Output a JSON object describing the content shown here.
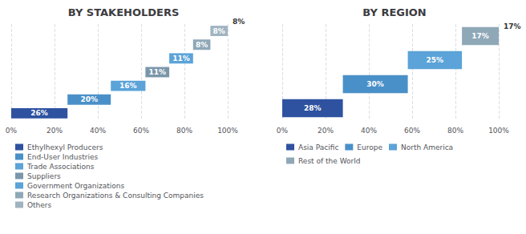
{
  "chart_data": [
    {
      "type": "bar",
      "orientation": "horizontal",
      "stacked": true,
      "title": "BY STAKEHOLDERS",
      "categories": [
        "Ethylhexyl Producers",
        "End-User Industries",
        "Trade Associations",
        "Suppliers",
        "Government Organizations",
        "Research Organizations & Consulting Companies",
        "Others"
      ],
      "values": [
        26,
        20,
        16,
        11,
        11,
        8,
        8
      ],
      "value_labels": [
        "26%",
        "20%",
        "16%",
        "11%",
        "11%",
        "8%",
        "8%"
      ],
      "colors": [
        "#2E52A0",
        "#4A90C8",
        "#5BA3D8",
        "#7A96AA",
        "#5BA3D8",
        "#8FA8B8",
        "#A0B4C0"
      ],
      "data_labels": true,
      "annotations": [
        "8%"
      ],
      "xlim": [
        0,
        100
      ],
      "xticks": [
        {
          "value": 0,
          "label": "0%"
        },
        {
          "value": 20,
          "label": "20%"
        },
        {
          "value": 40,
          "label": "40%"
        },
        {
          "value": 60,
          "label": "60%"
        },
        {
          "value": 80,
          "label": "80%"
        },
        {
          "value": 100,
          "label": "100%"
        }
      ],
      "grid": true,
      "legend": "bottom",
      "tick_labels": "x"
    },
    {
      "type": "bar",
      "orientation": "horizontal",
      "stacked": true,
      "title": "BY REGION",
      "categories": [
        "Asia Pacific",
        "Europe",
        "North America",
        "Rest of the World"
      ],
      "values": [
        28,
        30,
        25,
        17
      ],
      "value_labels": [
        "28%",
        "30%",
        "25%",
        "17%"
      ],
      "colors": [
        "#2E52A0",
        "#4A90C8",
        "#5BA3D8",
        "#8FA8B8"
      ],
      "data_labels": true,
      "annotations": [
        "17%"
      ],
      "xlim": [
        0,
        100
      ],
      "xticks": [
        {
          "value": 0,
          "label": "0%"
        },
        {
          "value": 20,
          "label": "20%"
        },
        {
          "value": 40,
          "label": "40%"
        },
        {
          "value": 60,
          "label": "60%"
        },
        {
          "value": 80,
          "label": "80%"
        },
        {
          "value": 100,
          "label": "100%"
        }
      ],
      "grid": true,
      "legend": "bottom",
      "tick_labels": "x"
    }
  ]
}
